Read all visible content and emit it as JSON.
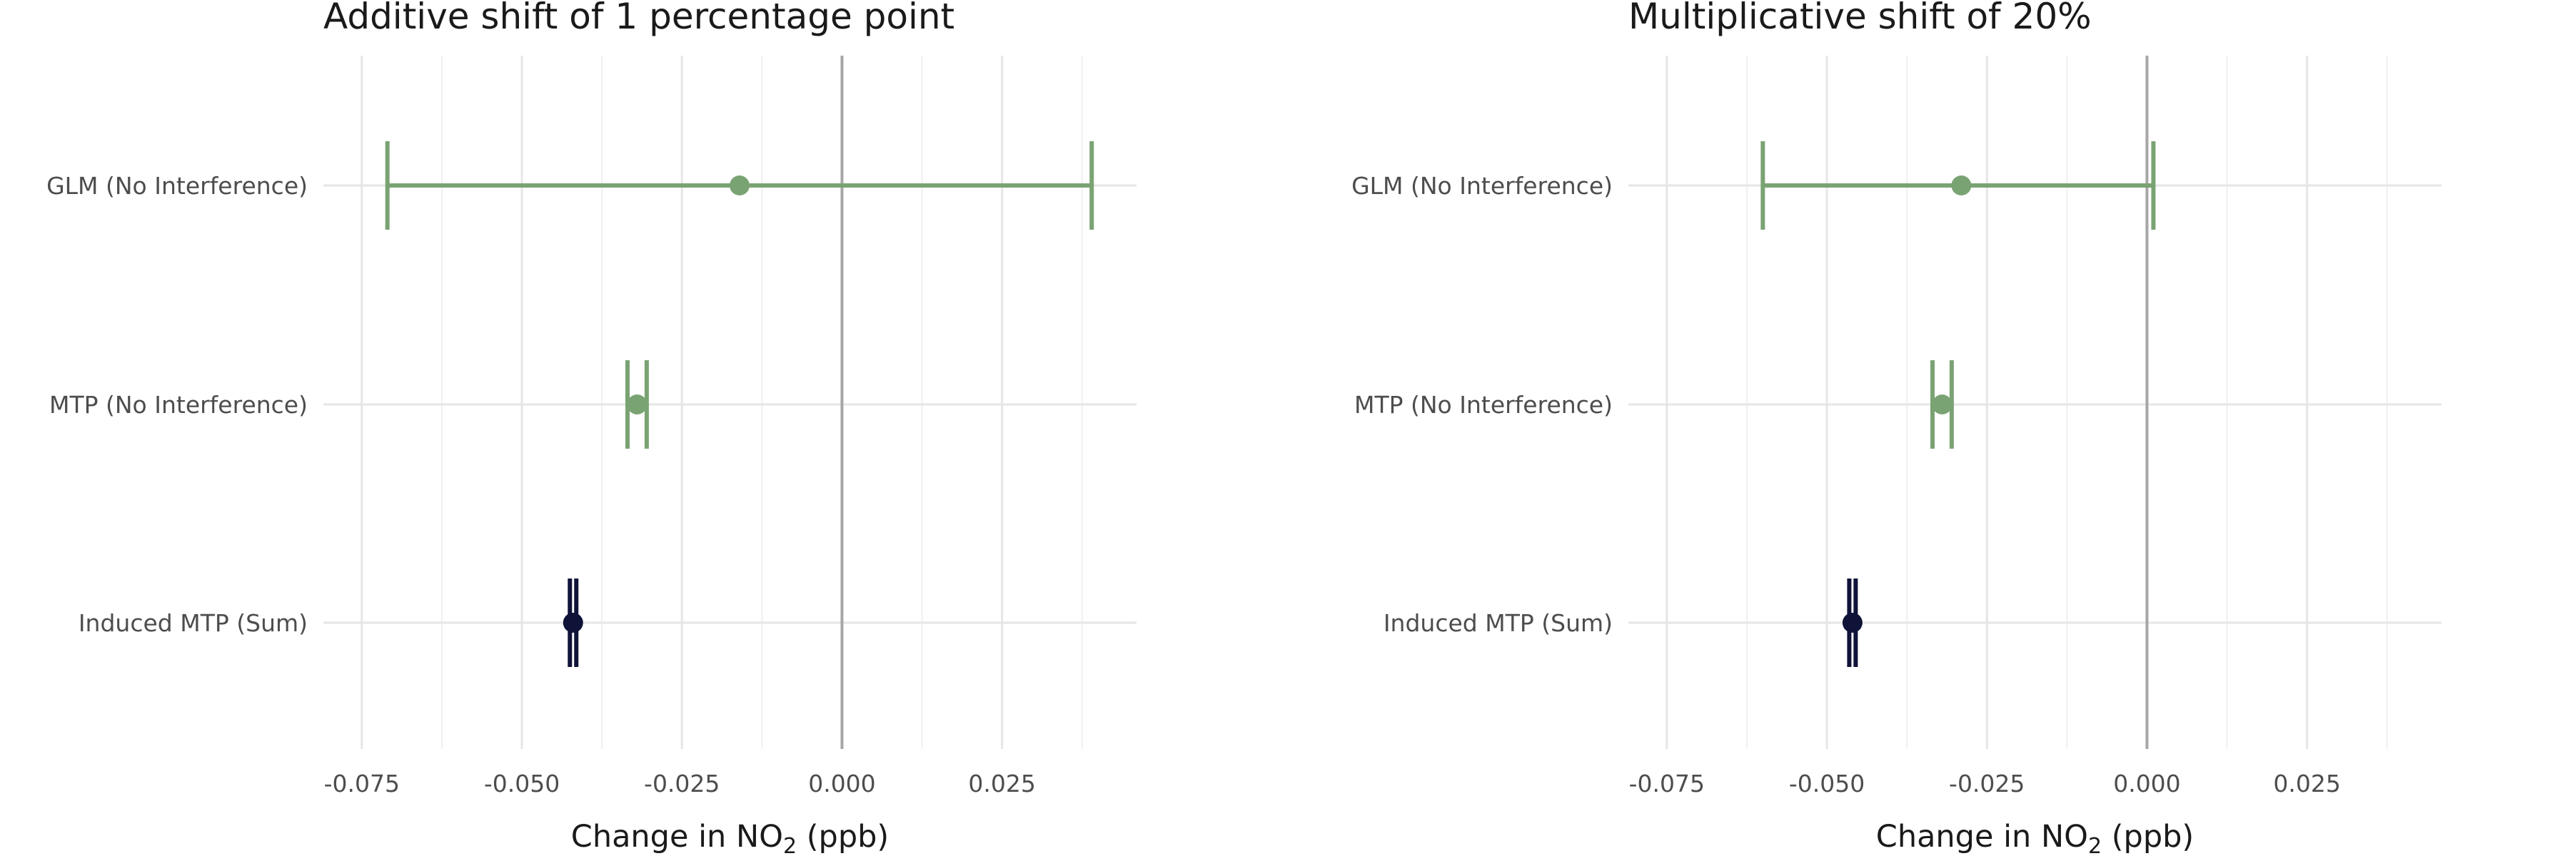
{
  "chart_data": [
    {
      "type": "forest",
      "title": "Additive shift of 1 percentage point",
      "xlabel_parts": [
        "Change in NO",
        "2",
        " (ppb)"
      ],
      "xlim": [
        -0.081,
        0.046
      ],
      "xticks": [
        -0.075,
        -0.05,
        -0.025,
        0.0,
        0.025
      ],
      "xtick_labels": [
        "-0.075",
        "-0.050",
        "-0.025",
        "0.000",
        "0.025"
      ],
      "reference_line": 0.0,
      "grid": true,
      "categories": [
        "GLM (No Interference)",
        "MTP (No Interference)",
        "Induced MTP (Sum)"
      ],
      "estimates": [
        {
          "label": "GLM (No Interference)",
          "estimate": -0.016,
          "lower": -0.071,
          "upper": 0.039,
          "color": "#7aa373"
        },
        {
          "label": "MTP (No Interference)",
          "estimate": -0.032,
          "lower": -0.0335,
          "upper": -0.0305,
          "color": "#7aa373"
        },
        {
          "label": "Induced MTP (Sum)",
          "estimate": -0.042,
          "lower": -0.0425,
          "upper": -0.0415,
          "color": "#0f1338"
        }
      ]
    },
    {
      "type": "forest",
      "title": "Multiplicative shift of 20%",
      "xlabel_parts": [
        "Change in NO",
        "2",
        " (ppb)"
      ],
      "xlim": [
        -0.081,
        0.046
      ],
      "xticks": [
        -0.075,
        -0.05,
        -0.025,
        0.0,
        0.025
      ],
      "xtick_labels": [
        "-0.075",
        "-0.050",
        "-0.025",
        "0.000",
        "0.025"
      ],
      "reference_line": 0.0,
      "grid": true,
      "categories": [
        "GLM (No Interference)",
        "MTP (No Interference)",
        "Induced MTP (Sum)"
      ],
      "estimates": [
        {
          "label": "GLM (No Interference)",
          "estimate": -0.029,
          "lower": -0.06,
          "upper": 0.001,
          "color": "#7aa373"
        },
        {
          "label": "MTP (No Interference)",
          "estimate": -0.032,
          "lower": -0.0335,
          "upper": -0.0305,
          "color": "#7aa373"
        },
        {
          "label": "Induced MTP (Sum)",
          "estimate": -0.046,
          "lower": -0.0465,
          "upper": -0.0455,
          "color": "#0f1338"
        }
      ]
    }
  ]
}
